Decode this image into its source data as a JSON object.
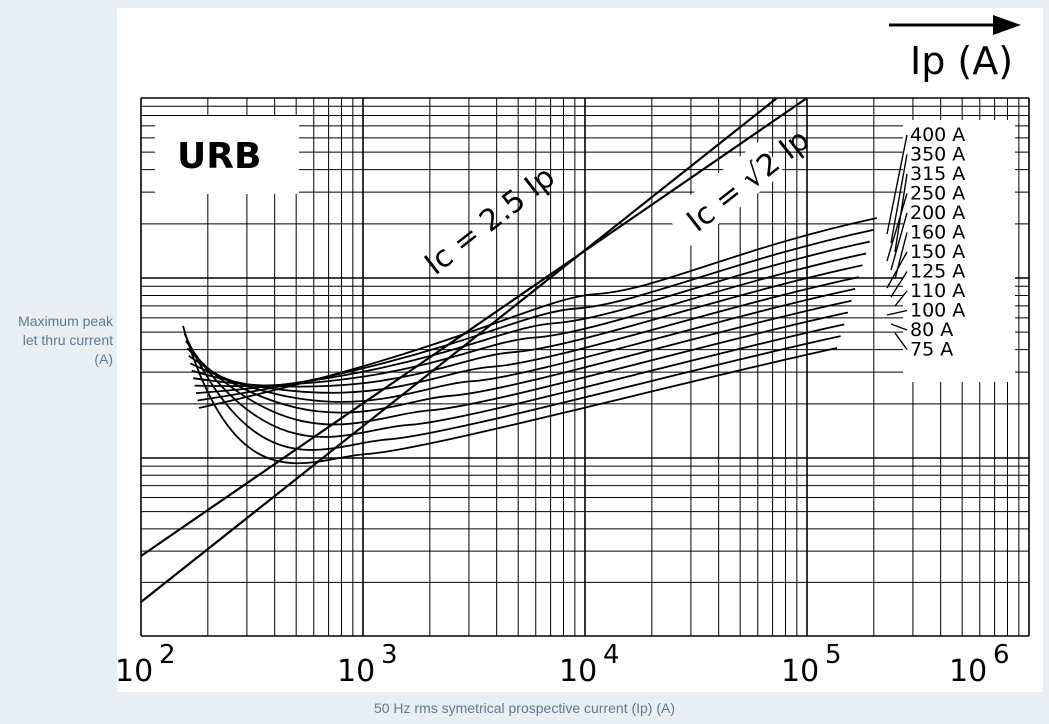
{
  "page": {
    "ylabel": "Maximum peak let thru current (A)",
    "xlabel": "50 Hz rms symetrical prospective current (Ip) (A)"
  },
  "chart_data": {
    "type": "line",
    "title": "URB",
    "axis_note": "Ip (A)",
    "x_scale": "log",
    "xlim": [
      100,
      1000000
    ],
    "x_ticks": [
      {
        "label": "10 2",
        "value": 100
      },
      {
        "label": "10 3",
        "value": 1000
      },
      {
        "label": "10 4",
        "value": 10000
      },
      {
        "label": "10 5",
        "value": 100000
      },
      {
        "label": "10 6",
        "value": 1000000
      }
    ],
    "reference_lines": [
      {
        "name": "Ic = 2.5 Ip"
      },
      {
        "name": "Ic = √2 Ip"
      }
    ],
    "series": [
      {
        "name": "400 A"
      },
      {
        "name": "350 A"
      },
      {
        "name": "315 A"
      },
      {
        "name": "250 A"
      },
      {
        "name": "200 A"
      },
      {
        "name": "160 A"
      },
      {
        "name": "150 A"
      },
      {
        "name": "125 A"
      },
      {
        "name": "110 A"
      },
      {
        "name": "100 A"
      },
      {
        "name": "80 A"
      },
      {
        "name": "75 A"
      }
    ],
    "grid": true,
    "legend": "right"
  }
}
